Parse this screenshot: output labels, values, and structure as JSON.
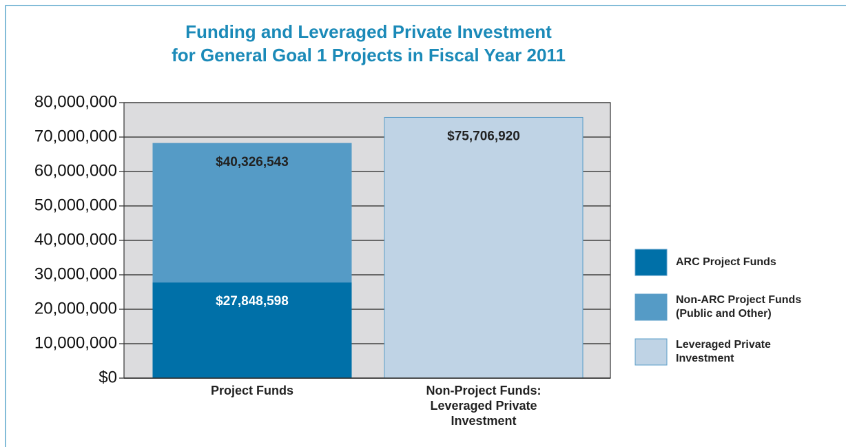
{
  "chart_data": {
    "type": "stacked_bar",
    "title": [
      "Funding and Leveraged Private Investment",
      "for General Goal 1 Projects in Fiscal Year 2011"
    ],
    "categories": [
      "Project Funds",
      "Non-Project Funds: Leveraged Private Investment"
    ],
    "series": [
      {
        "name": "ARC Project Funds",
        "color": "#0070a8",
        "label_color": "#ffffff",
        "values": [
          27848598,
          null
        ],
        "value_labels": [
          "$27,848,598",
          null
        ]
      },
      {
        "name": "Non-ARC Project Funds (Public and Other)",
        "color": "#559bc6",
        "label_color": "#222222",
        "values": [
          40326543,
          null
        ],
        "value_labels": [
          "$40,326,543",
          null
        ]
      },
      {
        "name": "Leveraged Private Investment",
        "color": "#bfd3e5",
        "label_color": "#222222",
        "values": [
          null,
          75706920
        ],
        "value_labels": [
          null,
          "$75,706,920"
        ]
      }
    ],
    "ylim": [
      0,
      80000000
    ],
    "yticks": [
      {
        "value": 0,
        "label": "$0"
      },
      {
        "value": 10000000,
        "label": "10,000,000"
      },
      {
        "value": 20000000,
        "label": "20,000,000"
      },
      {
        "value": 30000000,
        "label": "30,000,000"
      },
      {
        "value": 40000000,
        "label": "40,000,000"
      },
      {
        "value": 50000000,
        "label": "50,000,000"
      },
      {
        "value": 60000000,
        "label": "60,000,000"
      },
      {
        "value": 70000000,
        "label": "70,000,000"
      },
      {
        "value": 80000000,
        "label": "80,000,000"
      }
    ],
    "grid": true,
    "legend": "right"
  }
}
